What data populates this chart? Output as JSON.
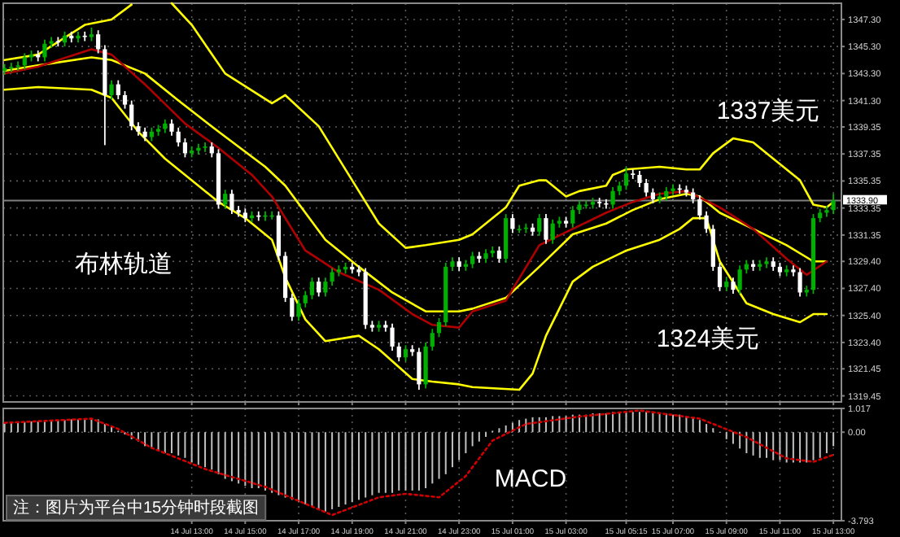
{
  "chart_data": [
    {
      "type": "candlestick",
      "x": [
        "--07-14T06:00",
        "--07-14T06:15",
        "--07-14T06:30",
        "--07-14T06:45",
        "--07-14T07:00",
        "--07-14T07:15",
        "--07-14T07:30",
        "--07-14T07:45",
        "--07-14T08:00",
        "--07-14T08:15",
        "--07-14T08:30",
        "--07-14T08:45",
        "--07-14T09:00",
        "--07-14T09:15",
        "--07-14T09:30",
        "--07-14T09:45",
        "--07-14T10:00",
        "--07-14T10:15",
        "--07-14T10:30",
        "--07-14T10:45",
        "--07-14T11:00",
        "--07-14T11:15",
        "--07-14T11:30",
        "--07-14T11:45",
        "--07-14T12:00",
        "--07-14T12:15",
        "--07-14T12:30",
        "--07-14T12:45",
        "--07-14T13:00",
        "--07-14T13:15",
        "--07-14T13:30",
        "--07-14T13:45",
        "--07-14T14:00",
        "--07-14T14:15",
        "--07-14T14:30",
        "--07-14T14:45",
        "--07-14T15:00",
        "--07-14T15:15",
        "--07-14T15:30",
        "--07-14T15:45",
        "--07-14T16:00",
        "--07-14T16:15",
        "--07-14T16:30",
        "--07-14T16:45",
        "--07-14T17:00",
        "--07-14T17:15",
        "--07-14T17:30",
        "--07-14T17:45",
        "--07-14T18:00",
        "--07-14T18:15",
        "--07-14T18:30",
        "--07-14T18:45",
        "--07-14T19:00",
        "--07-14T19:15",
        "--07-14T19:30",
        "--07-14T19:45",
        "--07-14T20:00",
        "--07-14T20:15",
        "--07-14T20:30",
        "--07-14T20:45",
        "--07-14T21:00",
        "--07-14T21:15",
        "--07-14T21:30",
        "--07-14T21:45",
        "--07-14T22:00",
        "--07-14T22:15",
        "--07-14T22:30",
        "--07-14T22:45",
        "--07-14T23:00",
        "--07-14T23:15",
        "--07-14T23:30",
        "--07-14T23:45",
        "--07-15T00:00",
        "--07-15T00:15",
        "--07-15T00:30",
        "--07-15T00:45",
        "--07-15T01:00",
        "--07-15T01:15",
        "--07-15T01:30",
        "--07-15T01:45",
        "--07-15T02:00",
        "--07-15T02:15",
        "--07-15T02:30",
        "--07-15T02:45",
        "--07-15T03:00",
        "--07-15T03:15",
        "--07-15T03:30",
        "--07-15T03:45",
        "--07-15T04:00",
        "--07-15T04:15",
        "--07-15T04:30",
        "--07-15T04:45",
        "--07-15T05:00",
        "--07-15T05:15",
        "--07-15T05:30",
        "--07-15T05:45",
        "--07-15T06:00",
        "--07-15T06:15",
        "--07-15T06:30",
        "--07-15T06:45",
        "--07-15T07:00",
        "--07-15T07:15",
        "--07-15T07:30",
        "--07-15T07:45",
        "--07-15T08:00",
        "--07-15T08:15",
        "--07-15T08:30",
        "--07-15T08:45",
        "--07-15T09:00",
        "--07-15T09:15",
        "--07-15T09:30",
        "--07-15T09:45",
        "--07-15T10:00",
        "--07-15T10:15",
        "--07-15T10:30",
        "--07-15T10:45",
        "--07-15T11:00",
        "--07-15T11:15",
        "--07-15T11:30",
        "--07-15T11:45",
        "--07-15T12:00",
        "--07-15T12:15",
        "--07-15T12:30",
        "--07-15T12:45",
        "--07-15T13:00"
      ],
      "ohlc": [
        [
          1343.5,
          1344.0,
          1343.2,
          1343.7
        ],
        [
          1343.7,
          1344.1,
          1343.4,
          1343.8
        ],
        [
          1343.8,
          1344.2,
          1343.5,
          1343.9
        ],
        [
          1343.9,
          1344.8,
          1343.6,
          1344.5
        ],
        [
          1344.5,
          1345.0,
          1344.2,
          1344.7
        ],
        [
          1344.7,
          1345.0,
          1344.2,
          1344.5
        ],
        [
          1344.5,
          1345.8,
          1344.2,
          1345.5
        ],
        [
          1345.5,
          1346.0,
          1345.2,
          1345.7
        ],
        [
          1345.7,
          1346.0,
          1345.3,
          1345.6
        ],
        [
          1345.6,
          1346.4,
          1345.3,
          1346.1
        ],
        [
          1346.1,
          1346.4,
          1345.6,
          1345.9
        ],
        [
          1345.9,
          1346.4,
          1345.6,
          1346.1
        ],
        [
          1346.1,
          1346.4,
          1345.7,
          1346.0
        ],
        [
          1346.0,
          1346.7,
          1345.7,
          1346.2
        ],
        [
          1346.2,
          1346.5,
          1344.8,
          1345.1
        ],
        [
          1345.1,
          1345.4,
          1338.0,
          1341.7
        ],
        [
          1341.7,
          1342.8,
          1341.4,
          1342.5
        ],
        [
          1342.5,
          1342.8,
          1341.4,
          1341.7
        ],
        [
          1341.7,
          1342.0,
          1340.7,
          1341.0
        ],
        [
          1341.0,
          1341.3,
          1339.1,
          1339.4
        ],
        [
          1339.4,
          1339.7,
          1338.7,
          1339.0
        ],
        [
          1339.0,
          1339.3,
          1338.3,
          1338.6
        ],
        [
          1338.6,
          1339.3,
          1338.3,
          1339.0
        ],
        [
          1339.0,
          1339.5,
          1338.7,
          1339.2
        ],
        [
          1339.2,
          1339.9,
          1338.9,
          1339.6
        ],
        [
          1339.6,
          1339.9,
          1338.7,
          1339.0
        ],
        [
          1339.0,
          1339.3,
          1337.9,
          1338.2
        ],
        [
          1338.2,
          1338.5,
          1337.1,
          1337.4
        ],
        [
          1337.4,
          1337.9,
          1337.1,
          1337.6
        ],
        [
          1337.6,
          1338.1,
          1337.3,
          1337.8
        ],
        [
          1337.8,
          1338.2,
          1337.5,
          1337.9
        ],
        [
          1337.9,
          1338.2,
          1337.1,
          1337.4
        ],
        [
          1337.4,
          1337.7,
          1333.3,
          1333.6
        ],
        [
          1333.6,
          1334.7,
          1333.3,
          1334.4
        ],
        [
          1334.4,
          1334.7,
          1332.9,
          1333.2
        ],
        [
          1333.2,
          1333.5,
          1332.7,
          1333.0
        ],
        [
          1333.0,
          1333.3,
          1332.3,
          1332.6
        ],
        [
          1332.6,
          1333.1,
          1332.3,
          1332.8
        ],
        [
          1332.8,
          1333.1,
          1332.4,
          1332.7
        ],
        [
          1332.7,
          1333.1,
          1332.4,
          1332.8
        ],
        [
          1332.8,
          1333.1,
          1332.5,
          1332.8
        ],
        [
          1332.8,
          1333.1,
          1329.5,
          1329.8
        ],
        [
          1329.8,
          1330.1,
          1326.4,
          1326.7
        ],
        [
          1326.7,
          1327.0,
          1325.0,
          1325.3
        ],
        [
          1325.3,
          1326.6,
          1325.0,
          1326.3
        ],
        [
          1326.3,
          1327.2,
          1326.0,
          1326.9
        ],
        [
          1326.9,
          1328.2,
          1326.6,
          1327.9
        ],
        [
          1327.9,
          1328.2,
          1326.8,
          1327.1
        ],
        [
          1327.1,
          1328.2,
          1326.8,
          1327.9
        ],
        [
          1327.9,
          1328.9,
          1327.6,
          1328.6
        ],
        [
          1328.6,
          1329.1,
          1328.3,
          1328.8
        ],
        [
          1328.8,
          1329.3,
          1328.5,
          1329.0
        ],
        [
          1329.0,
          1329.3,
          1328.5,
          1328.8
        ],
        [
          1328.8,
          1329.1,
          1328.3,
          1328.6
        ],
        [
          1328.6,
          1328.9,
          1324.4,
          1324.7
        ],
        [
          1324.7,
          1325.0,
          1324.2,
          1324.5
        ],
        [
          1324.5,
          1325.0,
          1324.2,
          1324.7
        ],
        [
          1324.7,
          1325.0,
          1324.2,
          1324.5
        ],
        [
          1324.5,
          1324.8,
          1322.8,
          1323.1
        ],
        [
          1323.1,
          1323.4,
          1322.0,
          1322.3
        ],
        [
          1322.3,
          1323.2,
          1322.0,
          1322.9
        ],
        [
          1322.9,
          1323.2,
          1322.4,
          1322.7
        ],
        [
          1322.7,
          1323.0,
          1319.9,
          1320.3
        ],
        [
          1320.3,
          1323.4,
          1320.0,
          1323.1
        ],
        [
          1323.1,
          1324.4,
          1322.8,
          1324.1
        ],
        [
          1324.1,
          1325.2,
          1323.8,
          1324.9
        ],
        [
          1324.9,
          1329.3,
          1324.6,
          1329.0
        ],
        [
          1329.0,
          1329.7,
          1328.7,
          1329.4
        ],
        [
          1329.4,
          1329.7,
          1328.7,
          1329.0
        ],
        [
          1329.0,
          1329.5,
          1328.7,
          1329.2
        ],
        [
          1329.2,
          1330.1,
          1328.9,
          1329.8
        ],
        [
          1329.8,
          1330.1,
          1329.3,
          1329.6
        ],
        [
          1329.6,
          1330.3,
          1329.3,
          1330.0
        ],
        [
          1330.0,
          1330.5,
          1329.7,
          1330.2
        ],
        [
          1330.2,
          1330.5,
          1329.3,
          1329.6
        ],
        [
          1329.6,
          1332.9,
          1329.3,
          1332.6
        ],
        [
          1332.6,
          1332.9,
          1331.5,
          1331.8
        ],
        [
          1331.8,
          1332.1,
          1331.5,
          1331.8
        ],
        [
          1331.8,
          1332.2,
          1331.5,
          1331.9
        ],
        [
          1331.9,
          1332.2,
          1331.3,
          1331.6
        ],
        [
          1331.6,
          1332.9,
          1331.3,
          1332.6
        ],
        [
          1332.6,
          1332.9,
          1330.7,
          1331.0
        ],
        [
          1331.0,
          1332.5,
          1330.7,
          1332.2
        ],
        [
          1332.2,
          1332.7,
          1331.9,
          1332.4
        ],
        [
          1332.4,
          1332.7,
          1331.9,
          1332.2
        ],
        [
          1332.2,
          1333.5,
          1331.9,
          1333.2
        ],
        [
          1333.2,
          1333.9,
          1332.9,
          1333.6
        ],
        [
          1333.6,
          1333.9,
          1333.3,
          1333.6
        ],
        [
          1333.6,
          1334.1,
          1333.3,
          1333.8
        ],
        [
          1333.8,
          1334.1,
          1333.4,
          1333.7
        ],
        [
          1333.7,
          1334.0,
          1333.3,
          1333.6
        ],
        [
          1333.6,
          1334.9,
          1333.3,
          1334.6
        ],
        [
          1334.6,
          1335.3,
          1334.3,
          1335.0
        ],
        [
          1335.0,
          1336.4,
          1334.7,
          1335.9
        ],
        [
          1335.9,
          1336.2,
          1335.5,
          1335.8
        ],
        [
          1335.8,
          1336.1,
          1334.9,
          1335.2
        ],
        [
          1335.2,
          1335.5,
          1334.2,
          1334.5
        ],
        [
          1334.5,
          1334.8,
          1333.7,
          1334.0
        ],
        [
          1334.0,
          1334.5,
          1333.7,
          1334.2
        ],
        [
          1334.2,
          1334.9,
          1333.9,
          1334.6
        ],
        [
          1334.6,
          1335.1,
          1334.3,
          1334.8
        ],
        [
          1334.8,
          1335.1,
          1334.4,
          1334.7
        ],
        [
          1334.7,
          1335.0,
          1334.2,
          1334.5
        ],
        [
          1334.5,
          1334.8,
          1333.7,
          1334.0
        ],
        [
          1334.0,
          1334.3,
          1332.5,
          1332.8
        ],
        [
          1332.8,
          1333.1,
          1331.5,
          1331.8
        ],
        [
          1331.8,
          1332.1,
          1328.7,
          1329.0
        ],
        [
          1329.0,
          1329.3,
          1327.2,
          1327.5
        ],
        [
          1327.5,
          1328.2,
          1327.2,
          1327.9
        ],
        [
          1327.9,
          1328.2,
          1327.0,
          1327.3
        ],
        [
          1327.3,
          1329.1,
          1327.0,
          1328.8
        ],
        [
          1328.8,
          1329.5,
          1328.5,
          1329.2
        ],
        [
          1329.2,
          1329.5,
          1328.7,
          1329.0
        ],
        [
          1329.0,
          1329.5,
          1328.7,
          1329.2
        ],
        [
          1329.2,
          1329.7,
          1328.9,
          1329.4
        ],
        [
          1329.4,
          1329.7,
          1328.7,
          1329.0
        ],
        [
          1329.0,
          1329.3,
          1328.3,
          1328.6
        ],
        [
          1328.6,
          1329.1,
          1328.3,
          1328.8
        ],
        [
          1328.8,
          1329.1,
          1328.3,
          1328.6
        ],
        [
          1328.6,
          1328.9,
          1326.8,
          1327.1
        ],
        [
          1327.1,
          1327.6,
          1326.8,
          1327.3
        ],
        [
          1327.3,
          1332.9,
          1327.0,
          1332.6
        ],
        [
          1332.6,
          1333.3,
          1332.3,
          1333.0
        ],
        [
          1333.0,
          1333.5,
          1332.7,
          1333.2
        ],
        [
          1333.2,
          1334.4,
          1332.9,
          1333.9
        ]
      ],
      "colors": [
        "#00b000",
        "#00b000",
        "#00b000",
        "#00b000",
        "#00b000",
        "#ffffff",
        "#00b000",
        "#00b000",
        "#ffffff",
        "#00b000",
        "#ffffff",
        "#00b000",
        "#ffffff",
        "#00b000",
        "#ffffff",
        "#ffffff",
        "#00b000",
        "#ffffff",
        "#ffffff",
        "#ffffff",
        "#ffffff",
        "#ffffff",
        "#00b000",
        "#00b000",
        "#00b000",
        "#ffffff",
        "#ffffff",
        "#ffffff",
        "#00b000",
        "#00b000",
        "#00b000",
        "#ffffff",
        "#ffffff",
        "#00b000",
        "#ffffff",
        "#ffffff",
        "#ffffff",
        "#00b000",
        "#ffffff",
        "#00b000",
        "#00b000",
        "#ffffff",
        "#ffffff",
        "#ffffff",
        "#00b000",
        "#00b000",
        "#00b000",
        "#ffffff",
        "#00b000",
        "#00b000",
        "#00b000",
        "#00b000",
        "#ffffff",
        "#ffffff",
        "#ffffff",
        "#ffffff",
        "#00b000",
        "#ffffff",
        "#ffffff",
        "#ffffff",
        "#00b000",
        "#ffffff",
        "#ffffff",
        "#00b000",
        "#00b000",
        "#00b000",
        "#00b000",
        "#00b000",
        "#ffffff",
        "#00b000",
        "#00b000",
        "#ffffff",
        "#00b000",
        "#00b000",
        "#ffffff",
        "#00b000",
        "#ffffff",
        "#00b000",
        "#00b000",
        "#ffffff",
        "#00b000",
        "#ffffff",
        "#00b000",
        "#00b000",
        "#ffffff",
        "#00b000",
        "#00b000",
        "#00b000",
        "#00b000",
        "#ffffff",
        "#ffffff",
        "#00b000",
        "#00b000",
        "#00b000",
        "#ffffff",
        "#ffffff",
        "#ffffff",
        "#ffffff",
        "#00b000",
        "#00b000",
        "#00b000",
        "#ffffff",
        "#ffffff",
        "#ffffff",
        "#ffffff",
        "#ffffff",
        "#ffffff",
        "#ffffff",
        "#00b000",
        "#ffffff",
        "#00b000",
        "#00b000",
        "#ffffff",
        "#00b000",
        "#00b000",
        "#ffffff",
        "#ffffff",
        "#00b000",
        "#ffffff",
        "#ffffff",
        "#00b000",
        "#00b000",
        "#00b000",
        "#00b000",
        "#00b000"
      ],
      "series": [
        {
          "type": "line",
          "color": "#ffff00",
          "x": [
            "--07-14T06:00",
            "--07-14T07:15",
            "--07-14T09:00",
            "--07-14T10:00",
            "--07-14T10:45",
            "--07-14T11:30",
            "--07-14T12:15",
            "--07-14T13:00",
            "--07-14T14:15",
            "--07-14T16:00",
            "--07-14T16:30",
            "--07-14T17:45",
            "--07-14T19:00",
            "--07-14T20:00",
            "--07-14T21:00",
            "--07-14T21:45",
            "--07-14T23:00",
            "--07-14T23:30",
            "--07-15T00:45",
            "--07-15T01:15",
            "--07-15T02:00",
            "--07-15T02:15",
            "--07-15T03:00",
            "--07-15T03:30",
            "--07-15T04:30",
            "--07-15T04:45",
            "--07-15T05:15",
            "--07-15T06:30",
            "--07-15T07:30",
            "--07-15T08:00",
            "--07-15T08:30",
            "--07-15T09:15",
            "--07-15T10:00",
            "--07-15T10:45",
            "--07-15T11:45",
            "--07-15T12:15",
            "--07-15T12:45",
            "--07-15T13:00"
          ],
          "values": [
            1344.3,
            1344.7,
            1346.9,
            1347.3,
            1348.4,
            null,
            1348.5,
            1346.9,
            1343.3,
            1341.1,
            1341.7,
            1339.4,
            1335.4,
            1332.2,
            1330.4,
            1330.6,
            1331.0,
            1331.4,
            1333.4,
            1335.0,
            1335.4,
            1335.4,
            1334.2,
            1334.6,
            1335.0,
            1335.8,
            1336.2,
            1336.4,
            1336.2,
            1336.2,
            1337.4,
            1338.5,
            1338.2,
            1337.0,
            1335.4,
            1333.6,
            1333.4,
            1333.8
          ]
        },
        {
          "type": "line",
          "color": "#ffff00",
          "x": [
            "--07-14T06:00",
            "--07-14T07:15",
            "--07-14T09:15",
            "--07-14T10:00",
            "--07-14T11:15",
            "--07-14T12:30",
            "--07-14T14:00",
            "--07-14T15:45",
            "--07-14T16:30",
            "--07-14T18:00",
            "--07-14T19:15",
            "--07-14T20:30",
            "--07-14T21:45",
            "--07-14T23:00",
            "--07-14T23:30",
            "--07-15T00:45",
            "--07-15T02:00",
            "--07-15T03:15",
            "--07-15T04:30",
            "--07-15T05:30",
            "--07-15T06:30",
            "--07-15T07:30",
            "--07-15T08:00",
            "--07-15T08:45",
            "--07-15T10:00",
            "--07-15T11:15",
            "--07-15T12:15",
            "--07-15T12:45"
          ],
          "values": [
            1343.5,
            1343.9,
            1344.5,
            1344.3,
            1343.3,
            1341.3,
            1339.0,
            1336.4,
            1335.0,
            1331.0,
            1329.0,
            1327.1,
            1325.7,
            1325.7,
            1325.9,
            1326.7,
            1329.0,
            1331.4,
            1332.2,
            1333.2,
            1334.0,
            1334.4,
            1334.2,
            1333.0,
            1331.8,
            1330.6,
            1329.4,
            1329.4
          ]
        },
        {
          "type": "line",
          "color": "#ffff00",
          "x": [
            "--07-14T06:00",
            "--07-14T07:15",
            "--07-14T09:15",
            "--07-14T10:00",
            "--07-14T11:00",
            "--07-14T12:00",
            "--07-14T14:00",
            "--07-14T15:00",
            "--07-14T16:00",
            "--07-14T16:30",
            "--07-14T17:15",
            "--07-14T18:00",
            "--07-14T19:15",
            "--07-14T20:00",
            "--07-14T21:15",
            "--07-14T22:00",
            "--07-14T23:00",
            "--07-14T23:30",
            "--07-15T01:15",
            "--07-15T01:45",
            "--07-15T02:15",
            "--07-15T03:15",
            "--07-15T04:00",
            "--07-15T05:15",
            "--07-15T06:30",
            "--07-15T07:15",
            "--07-15T07:45",
            "--07-15T08:15",
            "--07-15T08:45",
            "--07-15T09:45",
            "--07-15T10:45",
            "--07-15T11:45",
            "--07-15T12:15",
            "--07-15T12:45"
          ],
          "values": [
            1342.1,
            1342.3,
            1342.1,
            1341.5,
            1339.0,
            1337.0,
            1333.8,
            1332.6,
            1331.0,
            1328.2,
            1325.1,
            1323.5,
            1323.9,
            1322.9,
            1320.7,
            1320.5,
            1320.3,
            1320.1,
            1319.9,
            1321.1,
            1323.9,
            1327.9,
            1329.0,
            1330.2,
            1331.0,
            1331.8,
            1332.6,
            1332.6,
            1329.4,
            1326.3,
            1325.5,
            1324.9,
            1325.5,
            1325.5
          ]
        },
        {
          "type": "line",
          "color": "#b00000",
          "x": [
            "--07-14T06:00",
            "--07-14T07:15",
            "--07-14T09:15",
            "--07-14T10:00",
            "--07-14T11:15",
            "--07-14T12:45",
            "--07-14T14:00",
            "--07-14T15:15",
            "--07-14T16:00",
            "--07-14T17:15",
            "--07-14T18:30",
            "--07-14T20:00",
            "--07-14T21:15",
            "--07-14T22:00",
            "--07-14T23:00",
            "--07-14T23:30",
            "--07-15T00:45",
            "--07-15T02:00",
            "--07-15T03:15",
            "--07-15T04:30",
            "--07-15T05:30",
            "--07-15T06:30",
            "--07-15T07:30",
            "--07-15T08:45",
            "--07-15T10:00",
            "--07-15T11:15",
            "--07-15T12:00",
            "--07-15T12:45"
          ],
          "values": [
            1343.3,
            1343.8,
            1345.1,
            1344.7,
            1342.5,
            1339.6,
            1337.8,
            1335.8,
            1334.2,
            1330.2,
            1328.6,
            1327.3,
            1325.5,
            1324.7,
            1324.5,
            1325.7,
            1326.5,
            1330.6,
            1331.8,
            1333.0,
            1333.8,
            1334.4,
            1334.6,
            1333.4,
            1331.8,
            1329.6,
            1328.4,
            1329.4
          ]
        }
      ],
      "xlim": [
        "--07-14T05:57",
        "--07-15T13:18"
      ],
      "xticks": [
        {
          "value": "--07-14T13:00",
          "label": null
        },
        {
          "value": "--07-14T15:00",
          "label": null
        },
        {
          "value": "--07-14T17:00",
          "label": null
        },
        {
          "value": "--07-14T19:00",
          "label": null
        },
        {
          "value": "--07-14T21:00",
          "label": null
        },
        {
          "value": "--07-14T23:00",
          "label": null
        },
        {
          "value": "--07-15T01:00",
          "label": null
        },
        {
          "value": "--07-15T03:00",
          "label": null
        },
        {
          "value": "--07-15T05:15",
          "label": null
        },
        {
          "value": "--07-15T07:00",
          "label": null
        },
        {
          "value": "--07-15T09:00",
          "label": null
        },
        {
          "value": "--07-15T11:00",
          "label": null
        },
        {
          "value": "--07-15T13:00",
          "label": null
        }
      ],
      "ylim": [
        1319.0,
        1348.5
      ],
      "yticks": [
        {
          "value": 1347.3,
          "label": "1347.30"
        },
        {
          "value": 1345.3,
          "label": "1345.30"
        },
        {
          "value": 1343.3,
          "label": "1343.30"
        },
        {
          "value": 1341.3,
          "label": "1341.30"
        },
        {
          "value": 1339.35,
          "label": "1339.35"
        },
        {
          "value": 1337.35,
          "label": "1337.35"
        },
        {
          "value": 1335.35,
          "label": "1335.35"
        },
        {
          "value": 1333.35,
          "label": "1333.35"
        },
        {
          "value": 1331.35,
          "label": "1331.35"
        },
        {
          "value": 1329.4,
          "label": "1329.40"
        },
        {
          "value": 1327.4,
          "label": "1327.40"
        },
        {
          "value": 1325.4,
          "label": "1325.40"
        },
        {
          "value": 1323.4,
          "label": "1323.40"
        },
        {
          "value": 1321.45,
          "label": "1321.45"
        },
        {
          "value": 1319.45,
          "label": "1319.45"
        }
      ],
      "tick_labels": "y",
      "grid": true,
      "ref_lines": [
        {
          "axis": "y",
          "value": 1333.9,
          "label": "1333.90",
          "color": "#808080"
        }
      ],
      "annotations": [
        "布林轨道",
        "1337美元",
        "1324美元"
      ]
    },
    {
      "type": "bar",
      "series": [
        {
          "type": "bar",
          "color": "#c0c0c0",
          "x": [
            "--07-14T06:00",
            "--07-14T06:15",
            "--07-14T06:30",
            "--07-14T06:45",
            "--07-14T07:00",
            "--07-14T07:15",
            "--07-14T07:30",
            "--07-14T07:45",
            "--07-14T08:00",
            "--07-14T08:15",
            "--07-14T08:30",
            "--07-14T08:45",
            "--07-14T09:00",
            "--07-14T09:15",
            "--07-14T09:30",
            "--07-14T09:45",
            "--07-14T10:00",
            "--07-14T10:15",
            "--07-14T10:30",
            "--07-14T10:45",
            "--07-14T11:00",
            "--07-14T11:15",
            "--07-14T11:30",
            "--07-14T11:45",
            "--07-14T12:00",
            "--07-14T12:15",
            "--07-14T12:30",
            "--07-14T12:45",
            "--07-14T13:00",
            "--07-14T13:15",
            "--07-14T13:30",
            "--07-14T13:45",
            "--07-14T14:00",
            "--07-14T14:15",
            "--07-14T14:30",
            "--07-14T14:45",
            "--07-14T15:00",
            "--07-14T15:15",
            "--07-14T15:30",
            "--07-14T15:45",
            "--07-14T16:00",
            "--07-14T16:15",
            "--07-14T16:30",
            "--07-14T16:45",
            "--07-14T17:00",
            "--07-14T17:15",
            "--07-14T17:30",
            "--07-14T17:45",
            "--07-14T18:00",
            "--07-14T18:15",
            "--07-14T18:30",
            "--07-14T18:45",
            "--07-14T19:00",
            "--07-14T19:15",
            "--07-14T19:30",
            "--07-14T19:45",
            "--07-14T20:00",
            "--07-14T20:15",
            "--07-14T20:30",
            "--07-14T20:45",
            "--07-14T21:00",
            "--07-14T21:15",
            "--07-14T21:30",
            "--07-14T21:45",
            "--07-14T22:00",
            "--07-14T22:15",
            "--07-14T22:30",
            "--07-14T22:45",
            "--07-14T23:00",
            "--07-14T23:15",
            "--07-14T23:30",
            "--07-14T23:45",
            "--07-15T00:00",
            "--07-15T00:15",
            "--07-15T00:30",
            "--07-15T00:45",
            "--07-15T01:00",
            "--07-15T01:15",
            "--07-15T01:30",
            "--07-15T01:45",
            "--07-15T02:00",
            "--07-15T02:15",
            "--07-15T02:30",
            "--07-15T02:45",
            "--07-15T03:00",
            "--07-15T03:15",
            "--07-15T03:30",
            "--07-15T03:45",
            "--07-15T04:00",
            "--07-15T04:15",
            "--07-15T04:30",
            "--07-15T04:45",
            "--07-15T05:00",
            "--07-15T05:15",
            "--07-15T05:30",
            "--07-15T05:45",
            "--07-15T06:00",
            "--07-15T06:15",
            "--07-15T06:30",
            "--07-15T06:45",
            "--07-15T07:00",
            "--07-15T07:15",
            "--07-15T07:30",
            "--07-15T07:45",
            "--07-15T08:00",
            "--07-15T08:15",
            "--07-15T08:30",
            "--07-15T08:45",
            "--07-15T09:00",
            "--07-15T09:15",
            "--07-15T09:30",
            "--07-15T09:45",
            "--07-15T10:00",
            "--07-15T10:15",
            "--07-15T10:30",
            "--07-15T10:45",
            "--07-15T11:00",
            "--07-15T11:15",
            "--07-15T11:30",
            "--07-15T11:45",
            "--07-15T12:00",
            "--07-15T12:15",
            "--07-15T12:30",
            "--07-15T12:45",
            "--07-15T13:00"
          ],
          "values": [
            0.4,
            0.4,
            0.43,
            0.43,
            0.46,
            0.46,
            0.49,
            0.49,
            0.52,
            0.52,
            0.55,
            0.55,
            0.58,
            0.58,
            0.55,
            0.35,
            0.23,
            0.06,
            -0.1,
            -0.3,
            -0.4,
            -0.6,
            -0.7,
            -0.8,
            -0.9,
            -0.9,
            -1.0,
            -1.1,
            -1.3,
            -1.4,
            -1.5,
            -1.6,
            -1.8,
            -2.0,
            -2.1,
            -2.2,
            -2.3,
            -2.4,
            -2.4,
            -2.5,
            -2.6,
            -2.7,
            -2.8,
            -2.9,
            -3.0,
            -3.1,
            -3.2,
            -3.3,
            -3.4,
            -3.3,
            -3.2,
            -3.1,
            -3.0,
            -2.9,
            -2.8,
            -2.7,
            -2.6,
            -2.6,
            -2.6,
            -2.5,
            -2.5,
            -2.5,
            -2.5,
            -2.4,
            -2.2,
            -2.0,
            -1.8,
            -1.5,
            -1.2,
            -0.9,
            -0.6,
            -0.4,
            -0.2,
            0.06,
            0.17,
            0.29,
            0.4,
            0.52,
            0.58,
            0.64,
            0.64,
            0.64,
            0.69,
            0.69,
            0.69,
            0.75,
            0.75,
            0.75,
            0.81,
            0.81,
            0.81,
            0.87,
            0.87,
            0.87,
            0.87,
            0.87,
            0.87,
            0.81,
            0.81,
            0.81,
            0.75,
            0.75,
            0.69,
            0.64,
            0.52,
            0.35,
            0.17,
            0.0,
            -0.3,
            -0.5,
            -0.7,
            -0.9,
            -1.0,
            -1.1,
            -1.1,
            -1.2,
            -1.2,
            -1.3,
            -1.3,
            -1.3,
            -1.3,
            -1.2,
            -1.1,
            -0.9,
            -0.6
          ]
        },
        {
          "type": "line",
          "color": "#d00000",
          "line_style": "dotted",
          "x": [
            "--07-14T06:00",
            "--07-14T09:15",
            "--07-14T10:15",
            "--07-14T11:30",
            "--07-14T13:30",
            "--07-14T15:45",
            "--07-14T18:15",
            "--07-14T20:00",
            "--07-14T21:00",
            "--07-14T22:15",
            "--07-14T23:15",
            "--07-15T00:15",
            "--07-15T01:30",
            "--07-15T03:30",
            "--07-15T05:45",
            "--07-15T08:00",
            "--07-15T09:45",
            "--07-15T11:15",
            "--07-15T12:15",
            "--07-15T13:00"
          ],
          "values": [
            0.4,
            0.58,
            0.14,
            -0.67,
            -1.58,
            -2.34,
            -3.55,
            -2.79,
            -2.64,
            -2.79,
            -1.88,
            -0.36,
            0.35,
            0.67,
            0.93,
            0.58,
            -0.21,
            -1.12,
            -1.27,
            -0.97
          ]
        }
      ],
      "xlim": [
        "--07-14T05:57",
        "--07-15T13:18"
      ],
      "xticks": [
        {
          "value": "--07-14T13:00",
          "label": "14 Jul 13:00"
        },
        {
          "value": "--07-14T15:00",
          "label": "14 Jul 15:00"
        },
        {
          "value": "--07-14T17:00",
          "label": "14 Jul 17:00"
        },
        {
          "value": "--07-14T19:00",
          "label": "14 Jul 19:00"
        },
        {
          "value": "--07-14T21:00",
          "label": "14 Jul 21:00"
        },
        {
          "value": "--07-14T23:00",
          "label": "14 Jul 23:00"
        },
        {
          "value": "--07-15T01:00",
          "label": "15 Jul 01:00"
        },
        {
          "value": "--07-15T03:00",
          "label": "15 Jul 03:00"
        },
        {
          "value": "--07-15T05:15",
          "label": "15 Jul 05:15"
        },
        {
          "value": "--07-15T07:00",
          "label": "15 Jul 07:00"
        },
        {
          "value": "--07-15T09:00",
          "label": "15 Jul 09:00"
        },
        {
          "value": "--07-15T11:00",
          "label": "15 Jul 11:00"
        },
        {
          "value": "--07-15T13:00",
          "label": "15 Jul 13:00"
        }
      ],
      "ylim": [
        -3.793,
        1.017
      ],
      "yticks": [
        1.017,
        {
          "value": 0,
          "label": "0.00"
        },
        -3.793
      ],
      "grid": true,
      "annotations": [
        "MACD",
        "注：图片为平台中15分钟时段截图"
      ]
    }
  ]
}
